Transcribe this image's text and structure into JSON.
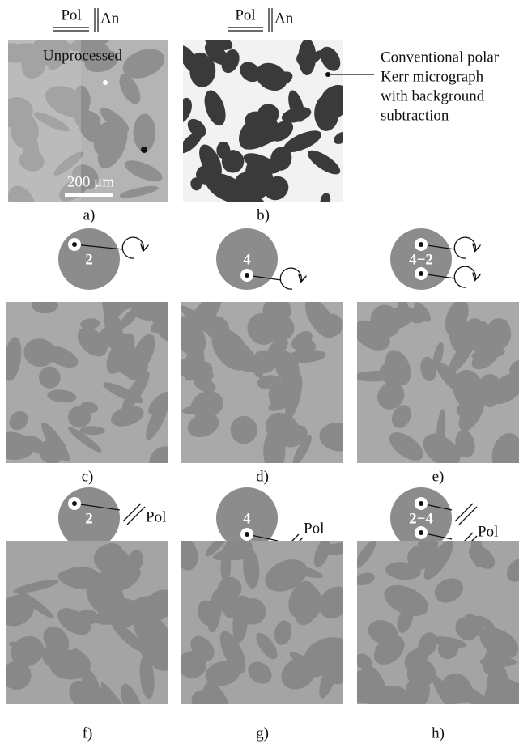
{
  "polarizer_marks": [
    {
      "pol": "Pol",
      "an": "An"
    },
    {
      "pol": "Pol",
      "an": "An"
    }
  ],
  "panel_a": {
    "label": "a)",
    "caption": "Unprocessed",
    "scale_bar": "200 μm"
  },
  "panel_b": {
    "label": "b)",
    "note_lines": [
      "Conventional polar",
      "Kerr micrograph",
      "with background",
      "subtraction"
    ]
  },
  "row2": [
    {
      "label": "c)",
      "spot": "2"
    },
    {
      "label": "d)",
      "spot": "4"
    },
    {
      "label": "e)",
      "spot": "4−2"
    }
  ],
  "row3": [
    {
      "label": "f)",
      "spot": "2",
      "pol": "Pol"
    },
    {
      "label": "g)",
      "spot": "4",
      "pol": "Pol"
    },
    {
      "label": "h)",
      "spot": "2−4",
      "pol": "Pol"
    }
  ]
}
